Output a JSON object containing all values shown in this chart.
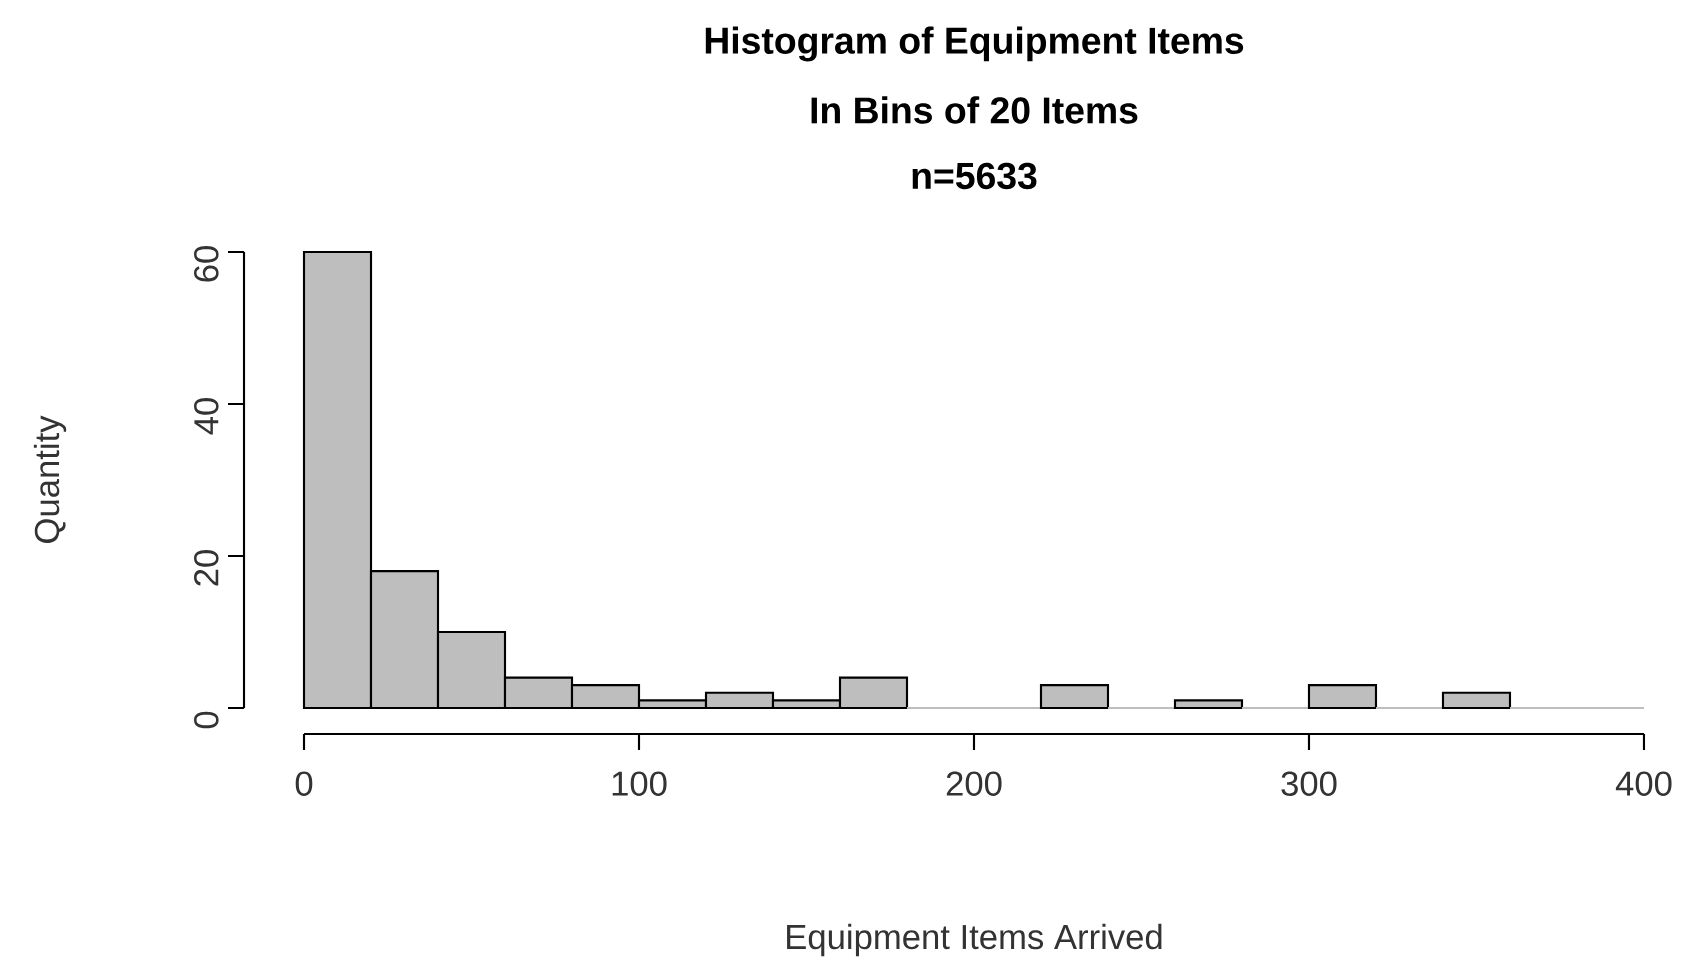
{
  "chart_data": {
    "type": "histogram",
    "title": "Histogram of Equipment Items",
    "subtitle": "In Bins of 20 Items",
    "annotations": [
      "n=5633"
    ],
    "xlabel": "Equipment Items Arrived",
    "ylabel": "Quantity",
    "bins": [
      0,
      20,
      40,
      60,
      80,
      100,
      120,
      140,
      160,
      180,
      200,
      220,
      240,
      260,
      280,
      300,
      320,
      340,
      360,
      380,
      400
    ],
    "values": [
      60,
      18,
      10,
      4,
      3,
      1,
      2,
      1,
      4,
      0,
      0,
      3,
      0,
      1,
      0,
      3,
      0,
      2,
      0,
      0
    ],
    "color": "#bebebe",
    "xlim": [
      0,
      400
    ],
    "ylim": [
      0,
      60
    ],
    "xticks": [
      0,
      100,
      200,
      300,
      400
    ],
    "yticks": [
      0,
      20,
      40,
      60
    ],
    "grid": false
  }
}
